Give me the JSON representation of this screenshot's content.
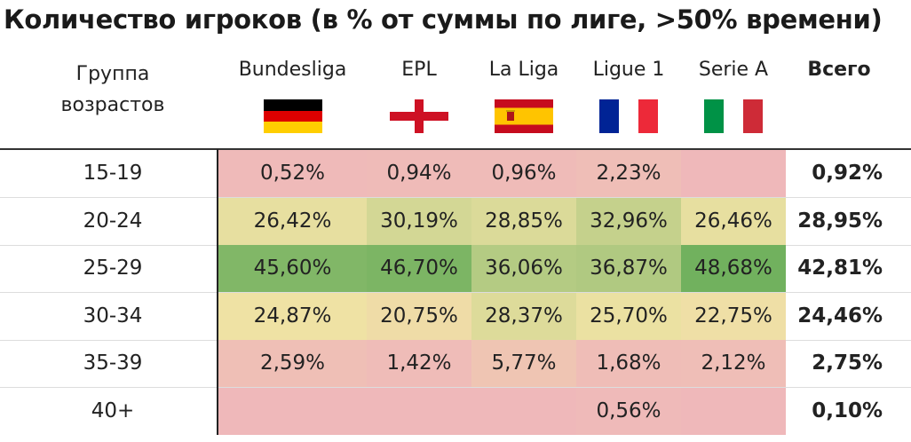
{
  "title": "Количество игроков (в % от суммы по лиге, >50% времени)",
  "header": {
    "age_group_label": "Группа\nвозрастов",
    "total_label": "Всего"
  },
  "chart_data": {
    "type": "heatmap",
    "title": "Количество игроков (в % от суммы по лиге, >50% времени)",
    "row_header": "Группа возрастов",
    "rows": [
      "15-19",
      "20-24",
      "25-29",
      "30-34",
      "35-39",
      "40+"
    ],
    "columns": [
      {
        "name": "Bundesliga",
        "flag": "germany-flag"
      },
      {
        "name": "EPL",
        "flag": "england-flag"
      },
      {
        "name": "La Liga",
        "flag": "spain-flag"
      },
      {
        "name": "Ligue 1",
        "flag": "france-flag"
      },
      {
        "name": "Serie A",
        "flag": "italy-flag"
      }
    ],
    "values": [
      [
        "0,52%",
        "0,94%",
        "0,96%",
        "2,23%",
        ""
      ],
      [
        "26,42%",
        "30,19%",
        "28,85%",
        "32,96%",
        "26,46%"
      ],
      [
        "45,60%",
        "46,70%",
        "36,06%",
        "36,87%",
        "48,68%"
      ],
      [
        "24,87%",
        "20,75%",
        "28,37%",
        "25,70%",
        "22,75%"
      ],
      [
        "2,59%",
        "1,42%",
        "5,77%",
        "1,68%",
        "2,12%"
      ],
      [
        "",
        "",
        "",
        "0,56%",
        ""
      ]
    ],
    "totals": [
      "0,92%",
      "28,95%",
      "42,81%",
      "24,46%",
      "2,75%",
      "0,10%"
    ],
    "color_scale": {
      "low": "#efb8ba",
      "mid": "#efe2a4",
      "high": "#6aae5a",
      "max": 50
    }
  }
}
